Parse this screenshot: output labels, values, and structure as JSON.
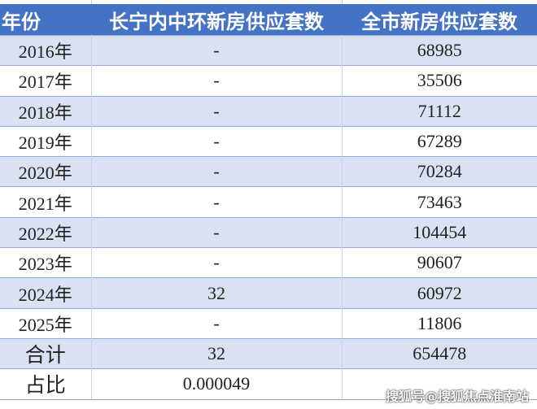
{
  "table": {
    "headers": [
      "年份",
      "长宁内中环新房供应套数",
      "全市新房供应套数"
    ],
    "rows": [
      [
        "2016年",
        "-",
        "68985"
      ],
      [
        "2017年",
        "-",
        "35506"
      ],
      [
        "2018年",
        "-",
        "71112"
      ],
      [
        "2019年",
        "-",
        "67289"
      ],
      [
        "2020年",
        "-",
        "70284"
      ],
      [
        "2021年",
        "-",
        "73463"
      ],
      [
        "2022年",
        "-",
        "104454"
      ],
      [
        "2023年",
        "-",
        "90607"
      ],
      [
        "2024年",
        "32",
        "60972"
      ],
      [
        "2025年",
        "-",
        "11806"
      ]
    ],
    "total": [
      "合计",
      "32",
      "654478"
    ],
    "ratio": [
      "占比",
      "0.000049",
      ""
    ]
  },
  "colors": {
    "header": "#4472c4",
    "band": "#d9e1f2"
  },
  "watermark": "搜狐号@搜狐焦点淮南站"
}
